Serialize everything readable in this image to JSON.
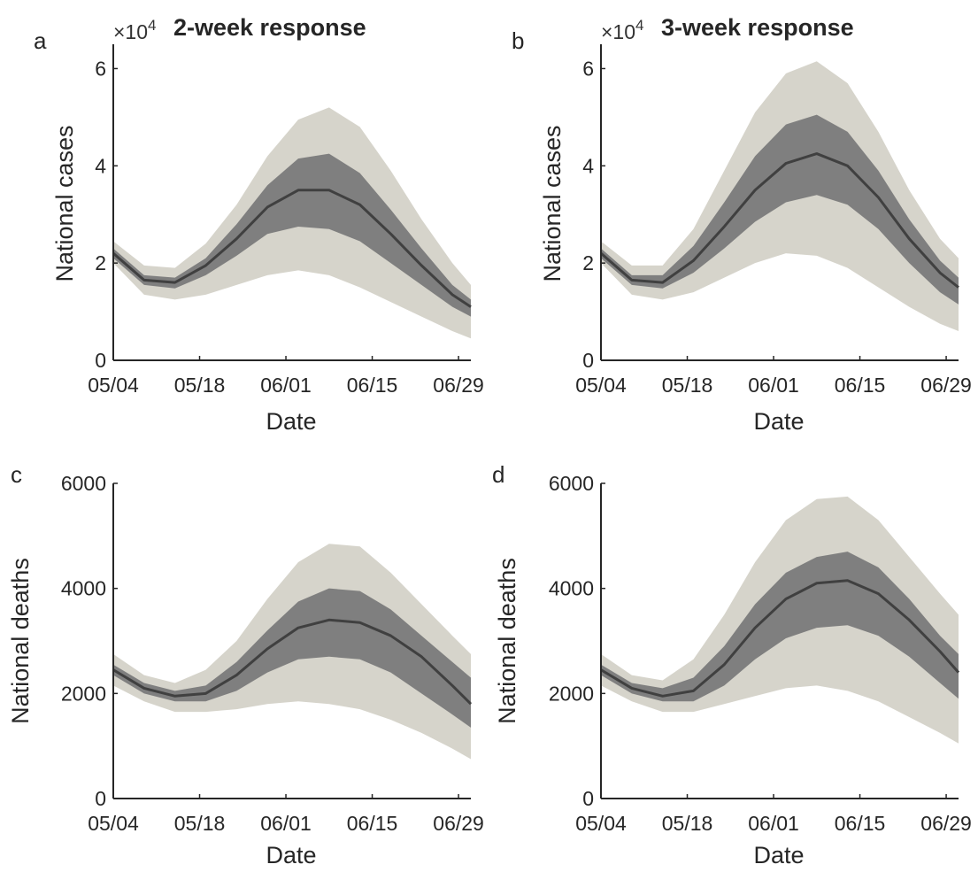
{
  "colors": {
    "outer_band": "#d6d4cb",
    "inner_band": "#7f7f7f",
    "median_line": "#404040",
    "axis": "#262626"
  },
  "chart_data": [
    {
      "type": "area",
      "panel_label": "a",
      "title": "2-week response",
      "exponent_label": "×10",
      "exponent_power": "4",
      "xlabel": "Date",
      "ylabel": "National cases",
      "xlim": [
        "05/04",
        "07/01"
      ],
      "ylim": [
        0,
        65000
      ],
      "x_ticks": [
        "05/04",
        "05/18",
        "06/01",
        "06/15",
        "06/29"
      ],
      "y_ticks": [
        0,
        20000,
        40000,
        60000
      ],
      "y_tick_labels": [
        "0",
        "2",
        "4",
        "6"
      ],
      "x": [
        "05/04",
        "05/09",
        "05/14",
        "05/19",
        "05/24",
        "05/29",
        "06/03",
        "06/08",
        "06/13",
        "06/18",
        "06/23",
        "06/28",
        "07/01"
      ],
      "series": [
        {
          "role": "outer_upper",
          "values": [
            24500,
            19500,
            19000,
            24000,
            32000,
            42000,
            49500,
            52000,
            48000,
            39000,
            29000,
            20000,
            15500
          ]
        },
        {
          "role": "inner_upper",
          "values": [
            23000,
            17500,
            17000,
            21000,
            28000,
            36000,
            41500,
            42500,
            38500,
            31000,
            23000,
            15500,
            12500
          ]
        },
        {
          "role": "median",
          "values": [
            22000,
            16500,
            16000,
            19500,
            25000,
            31500,
            35000,
            35000,
            32000,
            26000,
            19500,
            13500,
            11000
          ]
        },
        {
          "role": "inner_lower",
          "values": [
            21000,
            15500,
            14800,
            17500,
            21500,
            26000,
            27500,
            27000,
            24500,
            20000,
            15500,
            11000,
            9000
          ]
        },
        {
          "role": "outer_lower",
          "values": [
            20000,
            13500,
            12500,
            13500,
            15500,
            17500,
            18500,
            17500,
            15000,
            12000,
            9000,
            6000,
            4500
          ]
        }
      ]
    },
    {
      "type": "area",
      "panel_label": "b",
      "title": "3-week response",
      "exponent_label": "×10",
      "exponent_power": "4",
      "xlabel": "Date",
      "ylabel": "National cases",
      "xlim": [
        "05/04",
        "07/01"
      ],
      "ylim": [
        0,
        65000
      ],
      "x_ticks": [
        "05/04",
        "05/18",
        "06/01",
        "06/15",
        "06/29"
      ],
      "y_ticks": [
        0,
        20000,
        40000,
        60000
      ],
      "y_tick_labels": [
        "0",
        "2",
        "4",
        "6"
      ],
      "x": [
        "05/04",
        "05/09",
        "05/14",
        "05/19",
        "05/24",
        "05/29",
        "06/03",
        "06/08",
        "06/13",
        "06/18",
        "06/23",
        "06/28",
        "07/01"
      ],
      "series": [
        {
          "role": "outer_upper",
          "values": [
            24500,
            19500,
            19500,
            27000,
            39000,
            51000,
            59000,
            61500,
            57000,
            47000,
            35000,
            25000,
            21000
          ]
        },
        {
          "role": "inner_upper",
          "values": [
            23000,
            17500,
            17500,
            23500,
            32500,
            42000,
            48500,
            50500,
            47000,
            39000,
            29000,
            20500,
            17000
          ]
        },
        {
          "role": "median",
          "values": [
            22000,
            16500,
            16000,
            20500,
            27500,
            35000,
            40500,
            42500,
            40000,
            33500,
            25000,
            18000,
            15000
          ]
        },
        {
          "role": "inner_lower",
          "values": [
            21000,
            15500,
            14800,
            18000,
            23000,
            28500,
            32500,
            34000,
            32000,
            27000,
            20000,
            14000,
            11500
          ]
        },
        {
          "role": "outer_lower",
          "values": [
            20000,
            13500,
            12500,
            14000,
            17000,
            20000,
            22000,
            21500,
            19000,
            15000,
            11000,
            7500,
            6000
          ]
        }
      ]
    },
    {
      "type": "area",
      "panel_label": "c",
      "title": "",
      "xlabel": "Date",
      "ylabel": "National deaths",
      "xlim": [
        "05/04",
        "07/01"
      ],
      "ylim": [
        0,
        6000
      ],
      "x_ticks": [
        "05/04",
        "05/18",
        "06/01",
        "06/15",
        "06/29"
      ],
      "y_ticks": [
        0,
        2000,
        4000,
        6000
      ],
      "y_tick_labels": [
        "0",
        "2000",
        "4000",
        "6000"
      ],
      "x": [
        "05/04",
        "05/09",
        "05/14",
        "05/19",
        "05/24",
        "05/29",
        "06/03",
        "06/08",
        "06/13",
        "06/18",
        "06/23",
        "06/28",
        "07/01"
      ],
      "series": [
        {
          "role": "outer_upper",
          "values": [
            2750,
            2350,
            2200,
            2450,
            3000,
            3800,
            4500,
            4850,
            4800,
            4300,
            3700,
            3100,
            2750
          ]
        },
        {
          "role": "inner_upper",
          "values": [
            2550,
            2200,
            2050,
            2150,
            2600,
            3200,
            3750,
            4000,
            3950,
            3600,
            3100,
            2600,
            2300
          ]
        },
        {
          "role": "median",
          "values": [
            2450,
            2100,
            1950,
            2000,
            2350,
            2850,
            3250,
            3400,
            3350,
            3100,
            2700,
            2150,
            1800
          ]
        },
        {
          "role": "inner_lower",
          "values": [
            2350,
            2000,
            1850,
            1850,
            2050,
            2400,
            2650,
            2700,
            2650,
            2400,
            2000,
            1600,
            1350
          ]
        },
        {
          "role": "outer_lower",
          "values": [
            2150,
            1850,
            1650,
            1650,
            1700,
            1800,
            1850,
            1800,
            1700,
            1500,
            1250,
            950,
            750
          ]
        }
      ]
    },
    {
      "type": "area",
      "panel_label": "d",
      "title": "",
      "xlabel": "Date",
      "ylabel": "National deaths",
      "xlim": [
        "05/04",
        "07/01"
      ],
      "ylim": [
        0,
        6000
      ],
      "x_ticks": [
        "05/04",
        "05/18",
        "06/01",
        "06/15",
        "06/29"
      ],
      "y_ticks": [
        0,
        2000,
        4000,
        6000
      ],
      "y_tick_labels": [
        "0",
        "2000",
        "4000",
        "6000"
      ],
      "x": [
        "05/04",
        "05/09",
        "05/14",
        "05/19",
        "05/24",
        "05/29",
        "06/03",
        "06/08",
        "06/13",
        "06/18",
        "06/23",
        "06/28",
        "07/01"
      ],
      "series": [
        {
          "role": "outer_upper",
          "values": [
            2750,
            2350,
            2250,
            2650,
            3500,
            4500,
            5300,
            5700,
            5750,
            5300,
            4600,
            3900,
            3500
          ]
        },
        {
          "role": "inner_upper",
          "values": [
            2550,
            2200,
            2100,
            2300,
            2900,
            3700,
            4300,
            4600,
            4700,
            4400,
            3800,
            3100,
            2750
          ]
        },
        {
          "role": "median",
          "values": [
            2450,
            2100,
            1950,
            2050,
            2550,
            3250,
            3800,
            4100,
            4150,
            3900,
            3400,
            2800,
            2400
          ]
        },
        {
          "role": "inner_lower",
          "values": [
            2350,
            2000,
            1850,
            1850,
            2150,
            2650,
            3050,
            3250,
            3300,
            3100,
            2700,
            2200,
            1900
          ]
        },
        {
          "role": "outer_lower",
          "values": [
            2150,
            1850,
            1650,
            1650,
            1800,
            1950,
            2100,
            2150,
            2050,
            1850,
            1550,
            1250,
            1050
          ]
        }
      ]
    }
  ]
}
